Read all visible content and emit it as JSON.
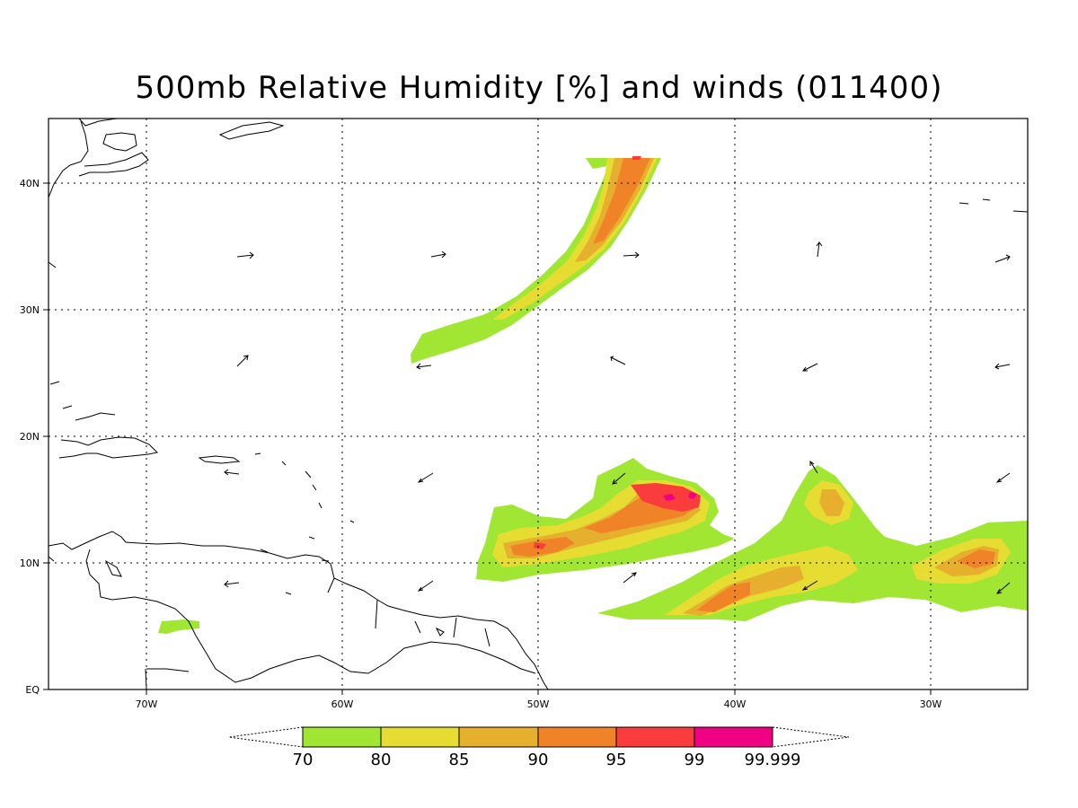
{
  "title": "500mb Relative Humidity [%] and winds (011400)",
  "lat_labels": [
    "40N",
    "30N",
    "20N",
    "10N",
    "EQ"
  ],
  "lon_labels": [
    "70W",
    "60W",
    "50W",
    "40W",
    "30W"
  ],
  "colorbar": {
    "levels": [
      "70",
      "80",
      "85",
      "90",
      "95",
      "99",
      "99.999"
    ],
    "colors": [
      "#a0e632",
      "#e6dc32",
      "#e6af2d",
      "#f08228",
      "#fa3c3c",
      "#f00082"
    ]
  }
}
